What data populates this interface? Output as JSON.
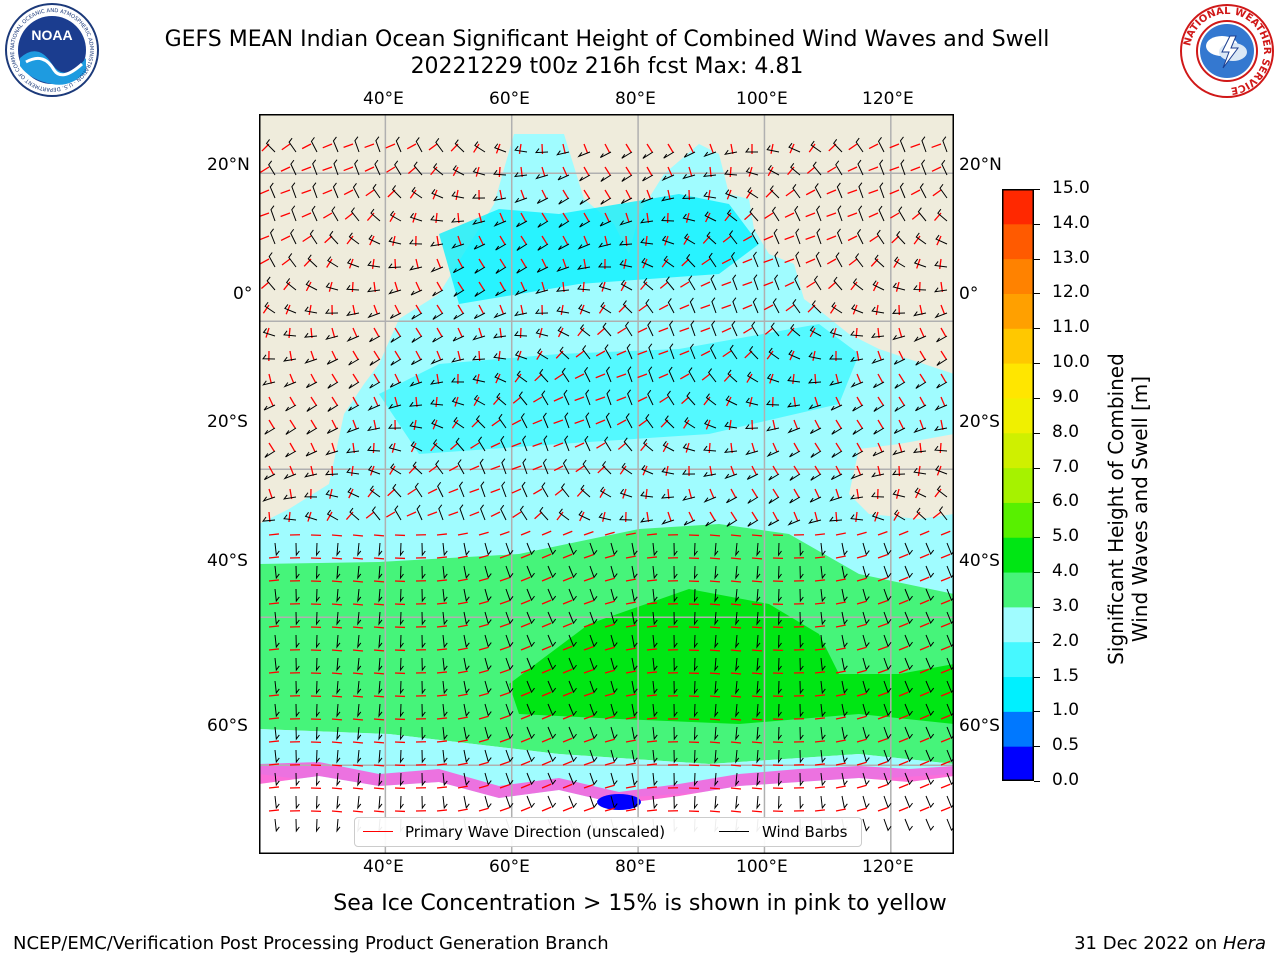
{
  "title": {
    "line1": "GEFS MEAN Indian Ocean Significant Height of Combined Wind Waves and Swell",
    "line2": "20221229 t00z 216h fcst   Max: 4.81"
  },
  "logos": {
    "left": {
      "text": "NOAA",
      "ring_text": "NATIONAL OCEANIC AND ATMOSPHERIC ADMINISTRATION · U.S. DEPARTMENT OF COMMERCE"
    },
    "right": {
      "ring_text": "NATIONAL WEATHER SERVICE"
    }
  },
  "map": {
    "lon_ticks": [
      "40°E",
      "60°E",
      "80°E",
      "100°E",
      "120°E"
    ],
    "lat_ticks_left": [
      "20°N",
      "0°",
      "20°S",
      "40°S",
      "60°S"
    ],
    "lat_ticks_right": [
      "20°N",
      "0°",
      "20°S",
      "40°S",
      "60°S"
    ],
    "lon_values": [
      40,
      60,
      80,
      100,
      120
    ],
    "lat_values": [
      20,
      0,
      -20,
      -40,
      -60
    ],
    "lon_range": [
      20,
      130
    ],
    "lat_range": [
      -72,
      28
    ],
    "land_color": "#efecdc",
    "ice_note": "Sea Ice Concentration > 15% is shown in pink to yellow",
    "colormap": [
      {
        "label": "0.0",
        "color": "#0000ff"
      },
      {
        "label": "0.5",
        "color": "#0078ff"
      },
      {
        "label": "1.0",
        "color": "#00f0ff"
      },
      {
        "label": "1.5",
        "color": "#46f8ff"
      },
      {
        "label": "2.0",
        "color": "#a0fcff"
      },
      {
        "label": "3.0",
        "color": "#46f47a"
      },
      {
        "label": "4.0",
        "color": "#00e614"
      },
      {
        "label": "5.0",
        "color": "#58f000"
      },
      {
        "label": "6.0",
        "color": "#a6f200"
      },
      {
        "label": "7.0",
        "color": "#cff000"
      },
      {
        "label": "8.0",
        "color": "#f0f000"
      },
      {
        "label": "9.0",
        "color": "#ffe600"
      },
      {
        "label": "10.0",
        "color": "#ffc800"
      },
      {
        "label": "11.0",
        "color": "#ffa000"
      },
      {
        "label": "12.0",
        "color": "#ff8200"
      },
      {
        "label": "13.0",
        "color": "#ff5a00"
      },
      {
        "label": "14.0",
        "color": "#ff2800"
      }
    ],
    "colorbar_top_label": "15.0",
    "colorbar_title_line1": "Significant Height of Combined",
    "colorbar_title_line2": "Wind Waves and Swell [m]",
    "legend": {
      "wave": "Primary Wave Direction (unscaled)",
      "barb": "Wind Barbs",
      "wave_color": "#ff0000",
      "barb_color": "#000000"
    }
  },
  "footer": {
    "left": "NCEP/EMC/Verification Post Processing Product Generation Branch",
    "right_date": "31 Dec 2022 on ",
    "right_host": "Hera"
  }
}
